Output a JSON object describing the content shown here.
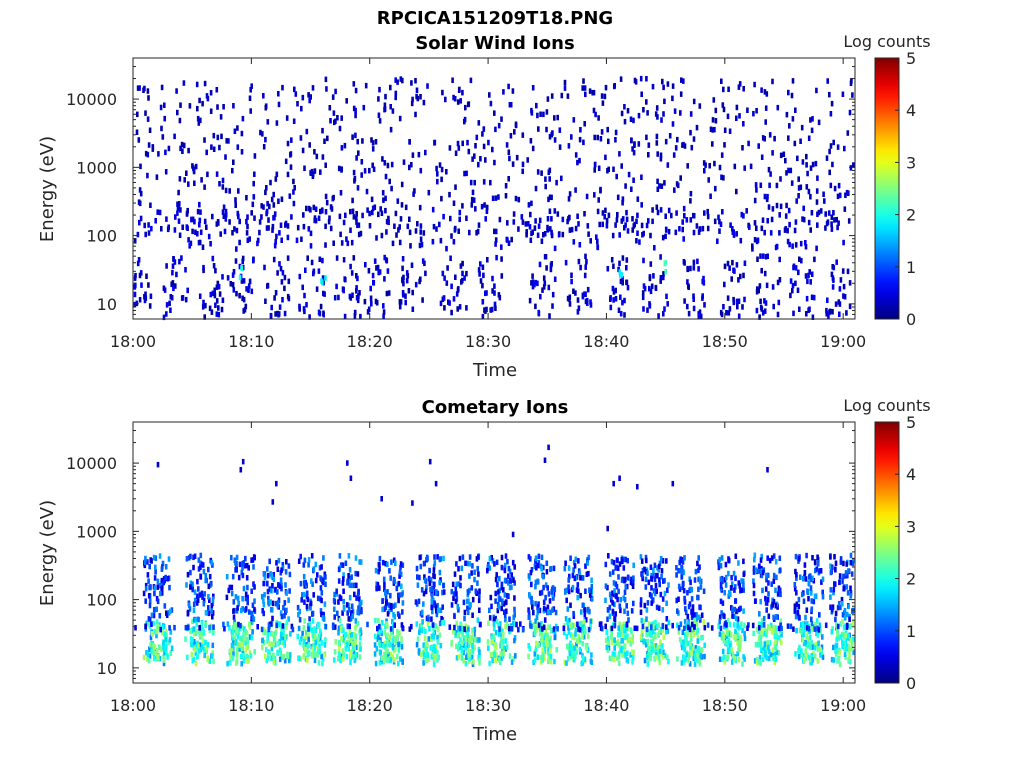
{
  "figure": {
    "title": "RPCICA151209T18.PNG"
  },
  "chart_data": [
    {
      "type": "heatmap",
      "title": "Solar Wind Ions",
      "xlabel": "Time",
      "ylabel": "Energy (eV)",
      "x_range": [
        "18:00",
        "19:01"
      ],
      "x_ticks": [
        "18:00",
        "18:10",
        "18:20",
        "18:30",
        "18:40",
        "18:50",
        "19:00"
      ],
      "y_scale": "log",
      "y_range": [
        6,
        40000
      ],
      "y_ticks": [
        "10",
        "100",
        "1000",
        "10000"
      ],
      "colorbar": {
        "label": "Log counts",
        "range": [
          0,
          5
        ],
        "ticks": [
          "0",
          "1",
          "2",
          "3",
          "4",
          "5"
        ],
        "colormap": "jet"
      },
      "description_of_content": "sparse single-count noise across 100 eV – 20 keV, with denser low-energy (10–40 eV) features at roughly 2-minute intervals",
      "seed": 12345,
      "bursts_min": [
        0.5,
        3.5,
        6.5,
        9.0,
        12.0,
        15.0,
        18.0,
        20.5,
        23.5,
        27.0,
        30.0,
        34.5,
        37.5,
        41.0,
        44.0,
        47.5,
        50.5,
        53.5,
        56.5,
        59.5
      ],
      "hot_points": [
        {
          "t_min": 9.0,
          "e_ev": 30,
          "log_counts": 2.0
        },
        {
          "t_min": 16.0,
          "e_ev": 20,
          "log_counts": 1.8
        },
        {
          "t_min": 41.0,
          "e_ev": 30,
          "log_counts": 1.8
        },
        {
          "t_min": 44.8,
          "e_ev": 35,
          "log_counts": 2.2
        }
      ]
    },
    {
      "type": "heatmap",
      "title": "Cometary Ions",
      "xlabel": "Time",
      "ylabel": "Energy (eV)",
      "x_range": [
        "18:00",
        "19:01"
      ],
      "x_ticks": [
        "18:00",
        "18:10",
        "18:20",
        "18:30",
        "18:40",
        "18:50",
        "19:00"
      ],
      "y_scale": "log",
      "y_range": [
        6,
        40000
      ],
      "y_ticks": [
        "10",
        "100",
        "1000",
        "10000"
      ],
      "colorbar": {
        "label": "Log counts",
        "range": [
          0,
          5
        ],
        "ticks": [
          "0",
          "1",
          "2",
          "3",
          "4",
          "5"
        ],
        "colormap": "jet"
      },
      "seed": 67890,
      "bursts_min": [
        2.0,
        5.5,
        9.0,
        12.0,
        15.0,
        18.0,
        21.5,
        25.0,
        28.0,
        31.0,
        34.5,
        37.5,
        41.0,
        44.0,
        47.0,
        50.5,
        53.5,
        57.0,
        60.0
      ],
      "outliers": [
        {
          "t_min": 2.0,
          "e_ev": 9500
        },
        {
          "t_min": 9.0,
          "e_ev": 8000
        },
        {
          "t_min": 9.2,
          "e_ev": 10500
        },
        {
          "t_min": 12.0,
          "e_ev": 5000
        },
        {
          "t_min": 11.7,
          "e_ev": 2700
        },
        {
          "t_min": 18.0,
          "e_ev": 10000
        },
        {
          "t_min": 18.3,
          "e_ev": 6000
        },
        {
          "t_min": 20.9,
          "e_ev": 3000
        },
        {
          "t_min": 23.5,
          "e_ev": 2600
        },
        {
          "t_min": 25.0,
          "e_ev": 10500
        },
        {
          "t_min": 25.5,
          "e_ev": 5000
        },
        {
          "t_min": 35.0,
          "e_ev": 17000
        },
        {
          "t_min": 34.7,
          "e_ev": 11000
        },
        {
          "t_min": 40.5,
          "e_ev": 5000
        },
        {
          "t_min": 41.0,
          "e_ev": 6000
        },
        {
          "t_min": 42.5,
          "e_ev": 4500
        },
        {
          "t_min": 45.5,
          "e_ev": 5000
        },
        {
          "t_min": 53.5,
          "e_ev": 8000
        },
        {
          "t_min": 40.0,
          "e_ev": 1100
        },
        {
          "t_min": 32.0,
          "e_ev": 900
        }
      ]
    }
  ]
}
